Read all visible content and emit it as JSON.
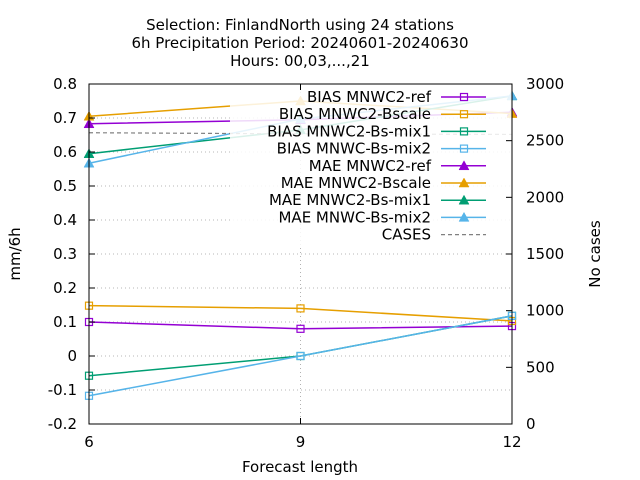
{
  "chart_data": {
    "type": "line",
    "title_lines": [
      "Selection: FinlandNorth using    24 stations",
      "6h Precipitation   Period: 20240601-20240630",
      "Hours: 00,03,...,21"
    ],
    "xlabel": "Forecast length",
    "ylabel": "mm/6h",
    "y2label": "No cases",
    "x": [
      6,
      9,
      12
    ],
    "xlim": [
      6,
      12
    ],
    "ylim": [
      -0.2,
      0.8
    ],
    "y2lim": [
      0,
      3000
    ],
    "xticks": [
      "6",
      "9",
      "12"
    ],
    "yticks": [
      "-0.2",
      "-0.1",
      "0",
      "0.1",
      "0.2",
      "0.3",
      "0.4",
      "0.5",
      "0.6",
      "0.7",
      "0.8"
    ],
    "y2ticks": [
      "0",
      "500",
      "1000",
      "1500",
      "2000",
      "2500",
      "3000"
    ],
    "grid": true,
    "legend_position": "top-right",
    "series": [
      {
        "name": "BIAS MNWC2-ref",
        "color": "#9400d3",
        "marker": "square",
        "axis": "y",
        "values": [
          0.1,
          0.08,
          0.088
        ]
      },
      {
        "name": "BIAS MNWC2-Bscale",
        "color": "#e69f00",
        "marker": "square",
        "axis": "y",
        "values": [
          0.148,
          0.14,
          0.103
        ]
      },
      {
        "name": "BIAS MNWC2-Bs-mix1",
        "color": "#009e73",
        "marker": "square",
        "axis": "y",
        "values": [
          -0.058,
          0.0,
          0.118
        ]
      },
      {
        "name": "BIAS MNWC-Bs-mix2",
        "color": "#56b4e9",
        "marker": "square",
        "axis": "y",
        "values": [
          -0.117,
          0.0,
          0.118
        ]
      },
      {
        "name": "MAE MNWC2-ref",
        "color": "#9400d3",
        "marker": "triangle",
        "axis": "y",
        "values": [
          0.683,
          0.695,
          0.717
        ]
      },
      {
        "name": "MAE MNWC2-Bscale",
        "color": "#e69f00",
        "marker": "triangle",
        "axis": "y",
        "values": [
          0.705,
          0.75,
          0.713
        ]
      },
      {
        "name": "MAE MNWC2-Bs-mix1",
        "color": "#009e73",
        "marker": "triangle",
        "axis": "y",
        "values": [
          0.595,
          0.665,
          0.765
        ]
      },
      {
        "name": "MAE MNWC-Bs-mix2",
        "color": "#56b4e9",
        "marker": "triangle",
        "axis": "y",
        "values": [
          0.567,
          0.697,
          0.765
        ]
      },
      {
        "name": "CASES",
        "color": "#808080",
        "marker": "none",
        "dashed": true,
        "axis": "y2",
        "values": [
          2570,
          2560,
          2555
        ]
      }
    ]
  }
}
